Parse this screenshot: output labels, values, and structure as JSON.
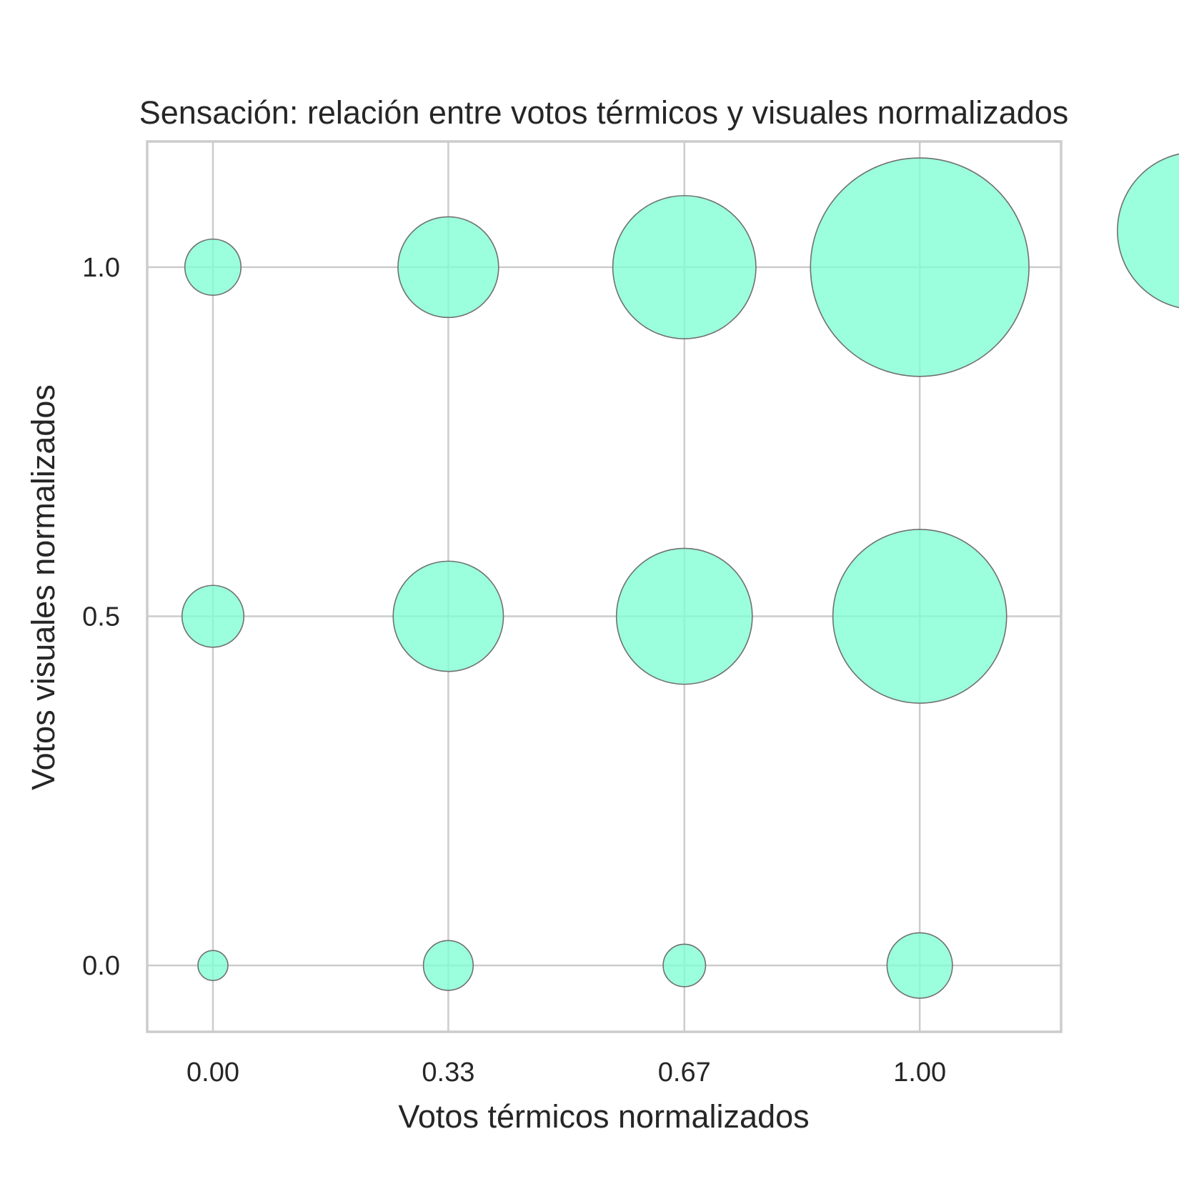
{
  "chart_data": {
    "type": "scatter",
    "title": "Sensación: relación entre votos térmicos y visuales normalizados",
    "xlabel": "Votos térmicos normalizados",
    "ylabel": "Votos visuales normalizados",
    "xlim": [
      -0.093,
      1.2
    ],
    "ylim": [
      -0.095,
      1.18
    ],
    "x_ticks": [
      0.0,
      0.333,
      0.667,
      1.0
    ],
    "x_tick_labels": [
      "0.00",
      "0.33",
      "0.67",
      "1.00"
    ],
    "y_ticks": [
      0.0,
      0.5,
      1.0
    ],
    "y_tick_labels": [
      "0.0",
      "0.5",
      "1.0"
    ],
    "grid": true,
    "legend": "outside right edge, clipped (single marker visible)",
    "colors": {
      "bubble_fill": "#7fffd4",
      "bubble_edge": "#707070",
      "grid": "#cccccc"
    },
    "size_semantics": "bubble area proportional to count",
    "points": [
      {
        "x": 0.0,
        "y": 0.0,
        "size": 4
      },
      {
        "x": 0.333,
        "y": 0.0,
        "size": 11
      },
      {
        "x": 0.667,
        "y": 0.0,
        "size": 8
      },
      {
        "x": 1.0,
        "y": 0.0,
        "size": 19
      },
      {
        "x": 0.0,
        "y": 0.5,
        "size": 17
      },
      {
        "x": 0.333,
        "y": 0.5,
        "size": 54
      },
      {
        "x": 0.667,
        "y": 0.5,
        "size": 82
      },
      {
        "x": 1.0,
        "y": 0.5,
        "size": 134
      },
      {
        "x": 0.0,
        "y": 1.0,
        "size": 14
      },
      {
        "x": 0.333,
        "y": 1.0,
        "size": 45
      },
      {
        "x": 0.667,
        "y": 1.0,
        "size": 91
      },
      {
        "x": 1.0,
        "y": 1.0,
        "size": 212
      }
    ],
    "legend_marker_size": 110
  }
}
